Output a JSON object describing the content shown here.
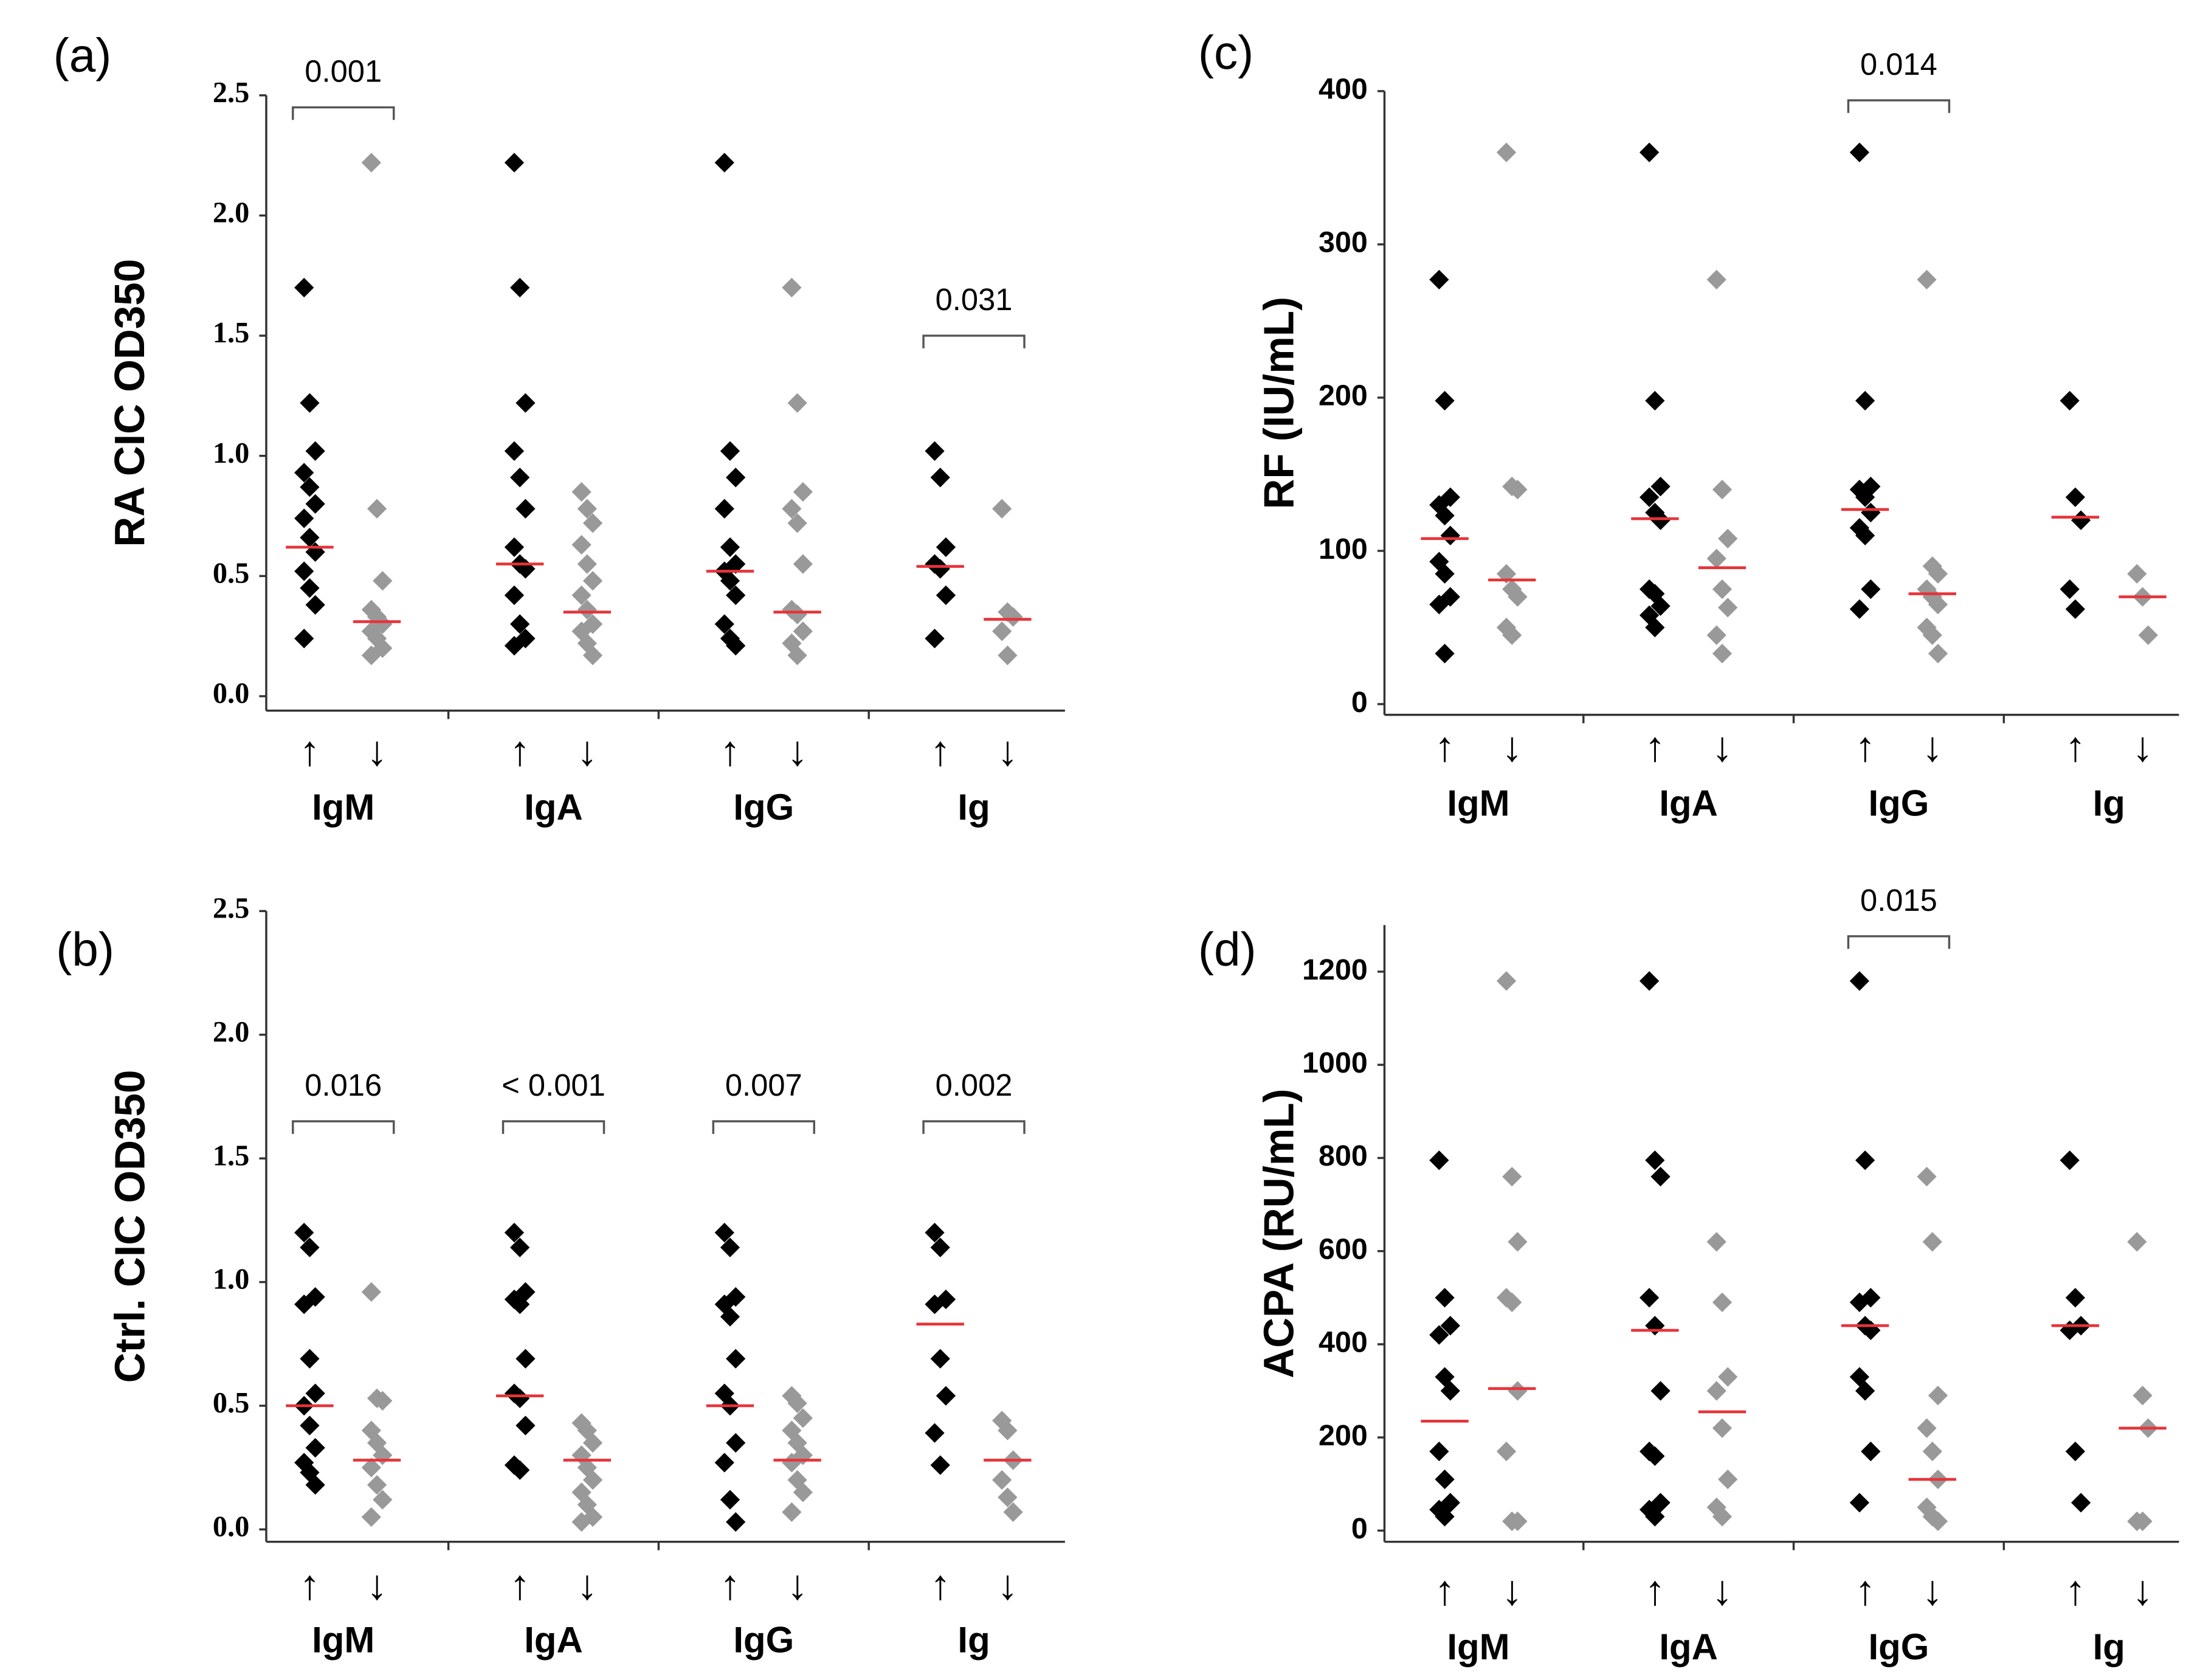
{
  "chart_data": [
    {
      "type": "dot",
      "panel": "(a)",
      "ylabel": "RA CIC OD350",
      "ylim": [
        -0.06,
        2.5
      ],
      "yticks": [
        {
          "value": 0,
          "label": "0.0"
        },
        0.5,
        {
          "value": 1,
          "label": "1.0"
        },
        1.5,
        {
          "value": 2,
          "label": "2.0"
        },
        2.5
      ],
      "categories": [
        "IgM",
        "IgA",
        "IgG",
        "Ig"
      ],
      "median_color": "#e8333a",
      "series": [
        {
          "name": "↑",
          "color": "#000000",
          "values": [
            [
              1.7,
              1.22,
              1.02,
              0.93,
              0.87,
              0.8,
              0.74,
              0.66,
              0.6,
              0.52,
              0.45,
              0.38,
              0.24
            ],
            [
              2.22,
              1.7,
              1.22,
              1.02,
              0.91,
              0.78,
              0.62,
              0.55,
              0.53,
              0.42,
              0.3,
              0.24,
              0.21
            ],
            [
              2.22,
              1.02,
              0.91,
              0.78,
              0.62,
              0.55,
              0.52,
              0.48,
              0.42,
              0.3,
              0.24,
              0.21
            ],
            [
              1.02,
              0.91,
              0.62,
              0.55,
              0.53,
              0.42,
              0.24
            ]
          ],
          "medians": [
            0.62,
            0.55,
            0.52,
            0.54
          ]
        },
        {
          "name": "↓",
          "color": "#999999",
          "values": [
            [
              2.22,
              0.78,
              0.48,
              0.36,
              0.33,
              0.3,
              0.27,
              0.24,
              0.2,
              0.17
            ],
            [
              0.85,
              0.78,
              0.72,
              0.63,
              0.55,
              0.48,
              0.42,
              0.36,
              0.3,
              0.27,
              0.22,
              0.17
            ],
            [
              1.7,
              1.22,
              0.85,
              0.78,
              0.72,
              0.55,
              0.36,
              0.34,
              0.27,
              0.22,
              0.17
            ],
            [
              0.78,
              0.35,
              0.33,
              0.27,
              0.17
            ]
          ],
          "medians": [
            0.31,
            0.35,
            0.35,
            0.32
          ]
        }
      ],
      "annotations": [
        {
          "text": "0.001",
          "category": 0,
          "y": 2.45
        },
        {
          "text": "0.031",
          "category": 3,
          "y": 1.5
        }
      ]
    },
    {
      "type": "dot",
      "panel": "(b)",
      "ylabel": "Ctrl. CIC OD350",
      "ylim": [
        -0.05,
        2.5
      ],
      "yticks": [
        {
          "value": 0,
          "label": "0.0"
        },
        0.5,
        {
          "value": 1,
          "label": "1.0"
        },
        1.5,
        {
          "value": 2,
          "label": "2.0"
        },
        2.5
      ],
      "categories": [
        "IgM",
        "IgA",
        "IgG",
        "Ig"
      ],
      "median_color": "#e8333a",
      "series": [
        {
          "name": "↑",
          "color": "#000000",
          "values": [
            [
              1.2,
              1.14,
              0.94,
              0.91,
              0.69,
              0.55,
              0.5,
              0.42,
              0.33,
              0.27,
              0.23,
              0.18
            ],
            [
              1.2,
              1.14,
              0.96,
              0.93,
              0.91,
              0.69,
              0.55,
              0.53,
              0.42,
              0.26,
              0.24
            ],
            [
              1.2,
              1.14,
              0.94,
              0.91,
              0.86,
              0.69,
              0.55,
              0.5,
              0.35,
              0.27,
              0.12,
              0.03
            ],
            [
              1.2,
              1.14,
              0.93,
              0.91,
              0.69,
              0.54,
              0.39,
              0.26
            ]
          ],
          "medians": [
            0.5,
            0.54,
            0.5,
            0.83
          ]
        },
        {
          "name": "↓",
          "color": "#999999",
          "values": [
            [
              0.96,
              0.53,
              0.52,
              0.4,
              0.35,
              0.3,
              0.25,
              0.18,
              0.12,
              0.05
            ],
            [
              0.43,
              0.4,
              0.35,
              0.3,
              0.25,
              0.2,
              0.15,
              0.1,
              0.05,
              0.03
            ],
            [
              0.54,
              0.51,
              0.45,
              0.4,
              0.35,
              0.3,
              0.27,
              0.2,
              0.15,
              0.07
            ],
            [
              0.44,
              0.4,
              0.28,
              0.2,
              0.13,
              0.07
            ]
          ],
          "medians": [
            0.28,
            0.28,
            0.28,
            0.28
          ]
        }
      ],
      "annotations": [
        {
          "text": "0.016",
          "category": 0,
          "y": 1.65
        },
        {
          "text": "< 0.001",
          "category": 1,
          "y": 1.65
        },
        {
          "text": "0.007",
          "category": 2,
          "y": 1.65
        },
        {
          "text": "0.002",
          "category": 3,
          "y": 1.65
        }
      ]
    },
    {
      "type": "dot",
      "panel": "(c)",
      "ylabel": "RF (IU/mL)",
      "ylim": [
        -7,
        400
      ],
      "yticks": [
        0,
        100,
        200,
        300,
        400
      ],
      "categories": [
        "IgM",
        "IgA",
        "IgG",
        "Ig"
      ],
      "median_color": "#e8333a",
      "series": [
        {
          "name": "↑",
          "color": "#000000",
          "values": [
            [
              277,
              198,
              135,
              130,
              123,
              110,
              93,
              85,
              70,
              65,
              33
            ],
            [
              360,
              198,
              142,
              135,
              125,
              120,
              75,
              72,
              64,
              58,
              50
            ],
            [
              360,
              198,
              142,
              140,
              135,
              125,
              115,
              110,
              75,
              62
            ],
            [
              198,
              135,
              120,
              75,
              62
            ]
          ],
          "medians": [
            108,
            121,
            127,
            122
          ]
        },
        {
          "name": "↓",
          "color": "#999999",
          "values": [
            [
              360,
              142,
              140,
              85,
              75,
              70,
              50,
              45
            ],
            [
              277,
              140,
              108,
              95,
              75,
              63,
              45,
              33
            ],
            [
              277,
              90,
              85,
              75,
              70,
              65,
              50,
              45,
              33
            ],
            [
              85,
              70,
              45
            ]
          ],
          "medians": [
            81,
            89,
            72,
            70
          ]
        }
      ],
      "annotations": [
        {
          "text": "0.014",
          "category": 2,
          "y": 394
        }
      ]
    },
    {
      "type": "dot",
      "panel": "(d)",
      "ylabel": "ACPA (RU/mL)",
      "ylim": [
        -24,
        1300
      ],
      "yticks": [
        0,
        200,
        400,
        600,
        800,
        1000,
        1200
      ],
      "categories": [
        "IgM",
        "IgA",
        "IgG",
        "Ig"
      ],
      "median_color": "#e8333a",
      "series": [
        {
          "name": "↑",
          "color": "#000000",
          "values": [
            [
              795,
              500,
              440,
              420,
              330,
              300,
              170,
              110,
              60,
              45,
              30
            ],
            [
              1180,
              795,
              760,
              500,
              440,
              300,
              170,
              160,
              60,
              45,
              30
            ],
            [
              1180,
              795,
              500,
              490,
              440,
              430,
              330,
              300,
              170,
              60
            ],
            [
              795,
              500,
              440,
              430,
              170,
              60
            ]
          ],
          "medians": [
            235,
            430,
            440,
            440
          ]
        },
        {
          "name": "↓",
          "color": "#999999",
          "values": [
            [
              1180,
              760,
              620,
              500,
              490,
              300,
              170,
              20,
              20
            ],
            [
              620,
              490,
              330,
              300,
              220,
              110,
              50,
              30
            ],
            [
              760,
              620,
              290,
              220,
              170,
              110,
              50,
              30,
              20
            ],
            [
              620,
              290,
              220,
              20,
              20
            ]
          ],
          "medians": [
            305,
            255,
            110,
            220
          ]
        }
      ],
      "annotations": [
        {
          "text": "0.015",
          "category": 2,
          "y": 1276
        }
      ]
    }
  ]
}
